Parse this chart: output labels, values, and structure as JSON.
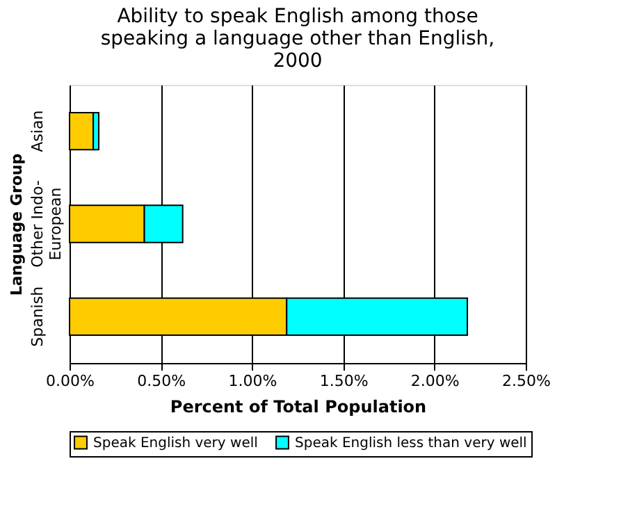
{
  "chart_data": {
    "type": "bar",
    "orientation": "horizontal",
    "stacked": true,
    "title": "Ability to speak English among those speaking a language other than English, 2000",
    "xlabel": "Percent of Total Population",
    "ylabel": "Language Group",
    "categories": [
      "Asian",
      "Other Indo-European",
      "Spanish"
    ],
    "series": [
      {
        "name": "Speak English very well",
        "color": "#ffcc00",
        "values": [
          0.13,
          0.41,
          1.19
        ]
      },
      {
        "name": "Speak English less than very well",
        "color": "#00ffff",
        "values": [
          0.03,
          0.21,
          0.99
        ]
      }
    ],
    "xlim": [
      0,
      2.5
    ],
    "xticks": [
      {
        "value": 0,
        "label": "0.00%"
      },
      {
        "value": 0.5,
        "label": "0.50%"
      },
      {
        "value": 1,
        "label": "1.00%"
      },
      {
        "value": 1.5,
        "label": "1.50%"
      },
      {
        "value": 2,
        "label": "2.00%"
      },
      {
        "value": 2.5,
        "label": "2.50%"
      }
    ],
    "grid": "x",
    "legend": "bottom"
  }
}
